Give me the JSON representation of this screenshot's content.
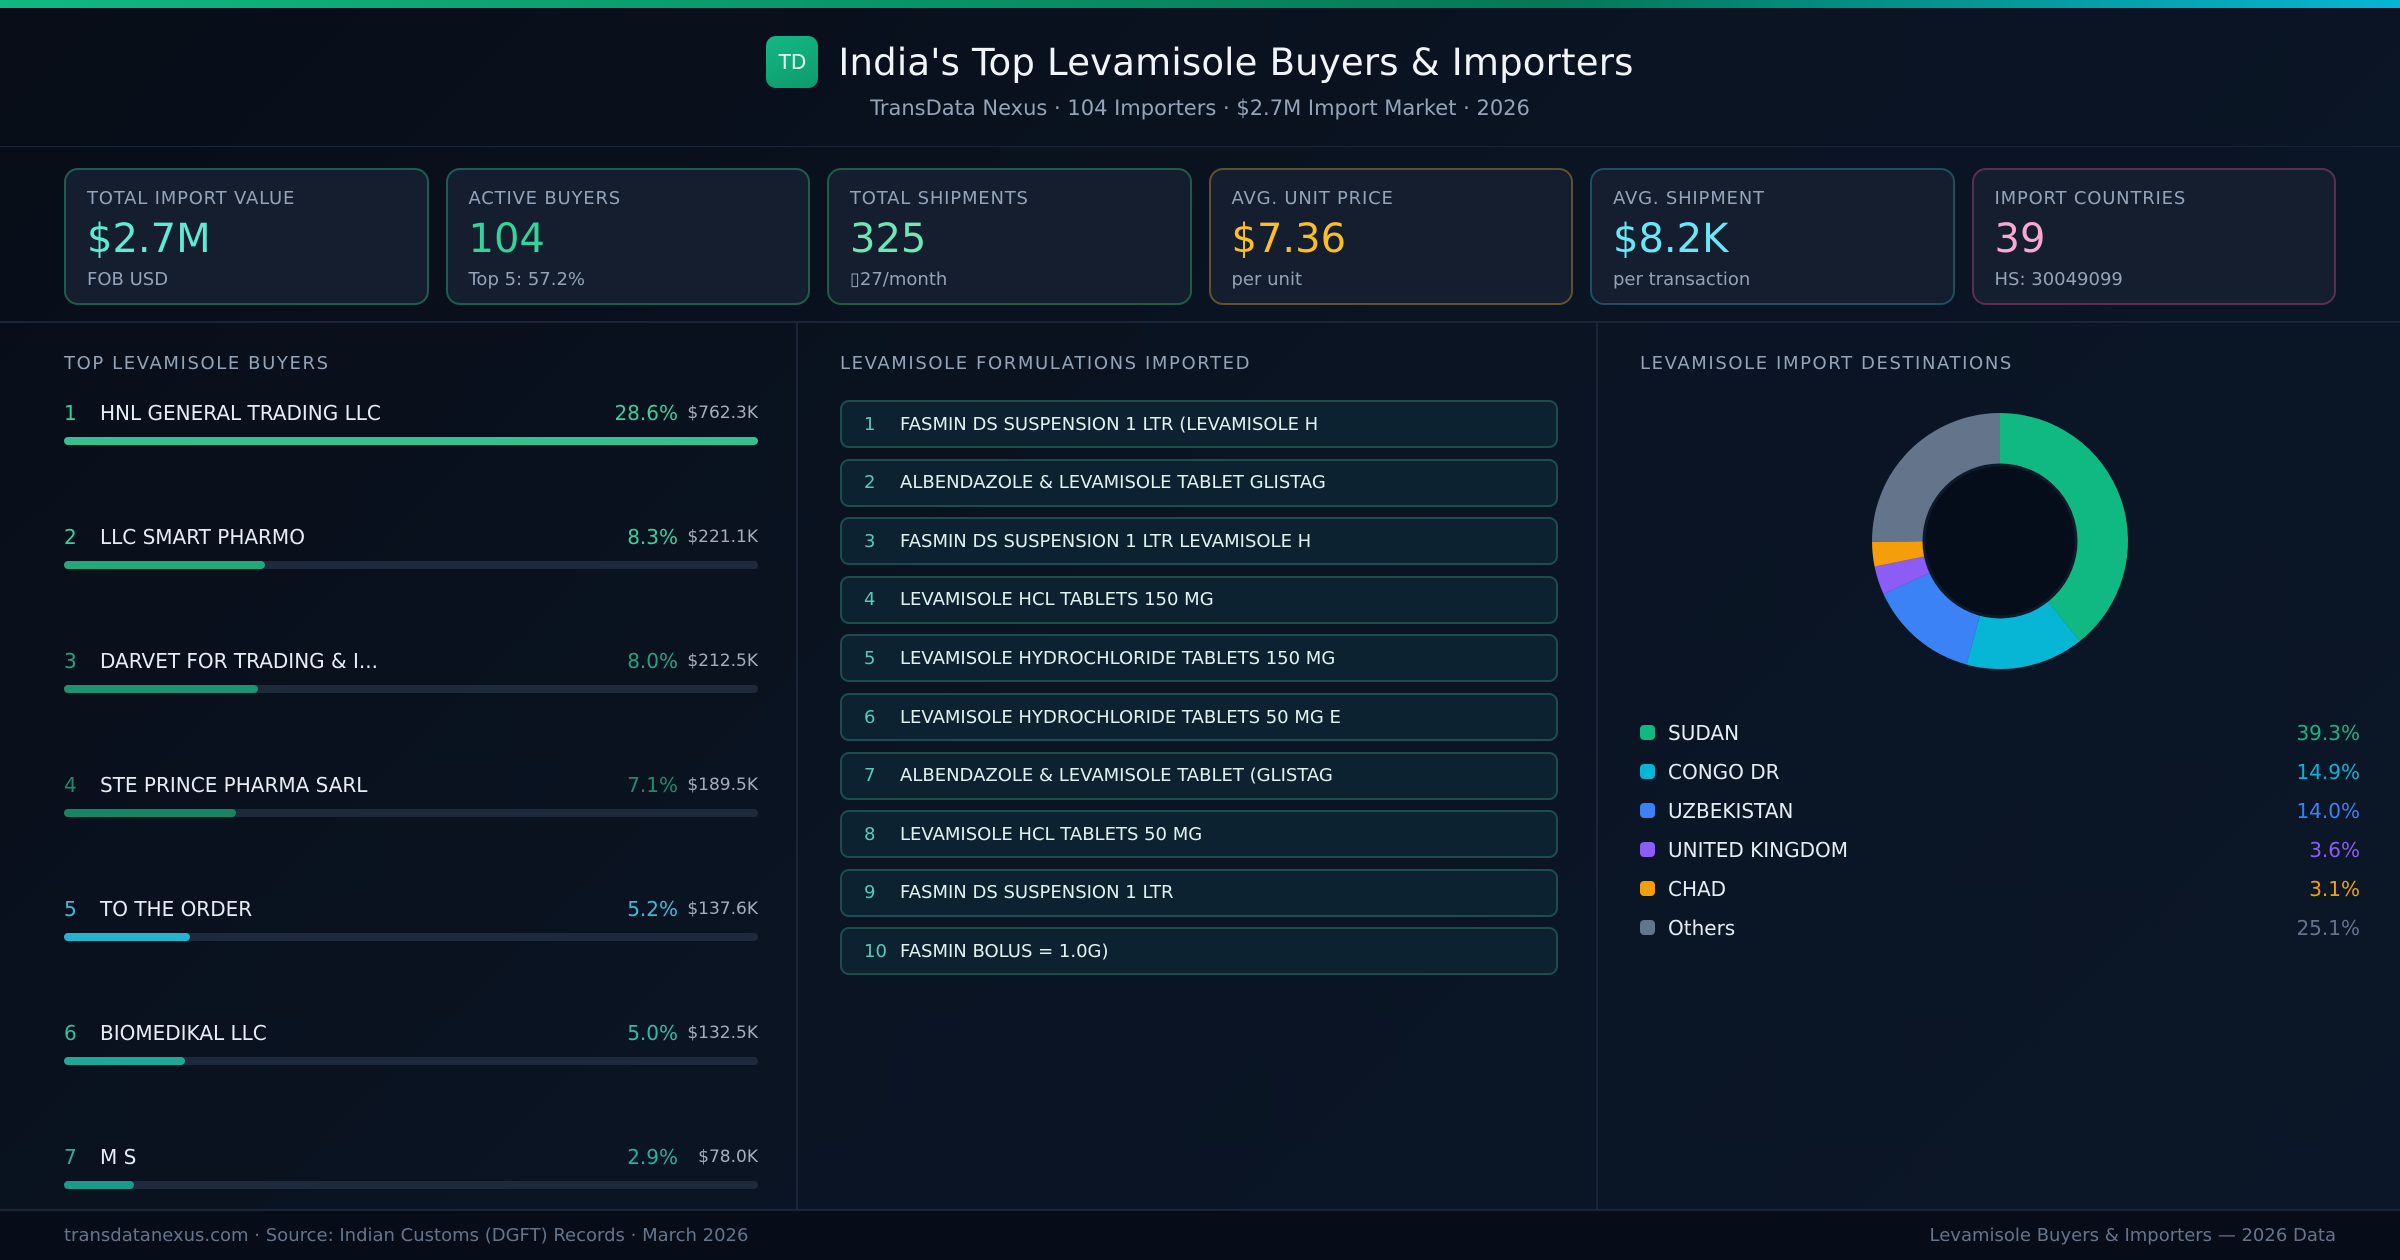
{
  "header": {
    "logo": "TD",
    "title": "India's Top Levamisole Buyers & Importers",
    "subtitle": "TransData Nexus · 104 Importers · $2.7M Import Market · 2026"
  },
  "kpis": [
    {
      "label": "TOTAL IMPORT VALUE",
      "value": "$2.7M",
      "sub": "FOB USD",
      "color": "#5eead4",
      "border": "#1f5c50"
    },
    {
      "label": "ACTIVE BUYERS",
      "value": "104",
      "sub": "Top 5: 57.2%",
      "color": "#34d399",
      "border": "#1f5c50"
    },
    {
      "label": "TOTAL SHIPMENTS",
      "value": "325",
      "sub": "▯27/month",
      "color": "#6ee7b7",
      "border": "#1f5c44"
    },
    {
      "label": "AVG. UNIT PRICE",
      "value": "$7.36",
      "sub": "per unit",
      "color": "#fbbf24",
      "border": "#5f5130"
    },
    {
      "label": "AVG. SHIPMENT",
      "value": "$8.2K",
      "sub": "per transaction",
      "color": "#67e8f9",
      "border": "#1d4f5e"
    },
    {
      "label": "IMPORT COUNTRIES",
      "value": "39",
      "sub": "HS: 30049099",
      "color": "#f9a8d4",
      "border": "#5a2f52"
    }
  ],
  "buyers": {
    "title": "TOP LEVAMISOLE BUYERS",
    "items": [
      {
        "rank": "1",
        "name": "HNL GENERAL TRADING LLC",
        "pct": "28.6%",
        "value": "$762.3K",
        "share": 28.6,
        "color": "#34d399",
        "bar": "#34c08f"
      },
      {
        "rank": "2",
        "name": "LLC SMART PHARMO",
        "pct": "8.3%",
        "value": "$221.1K",
        "share": 8.3,
        "color": "#34d399",
        "bar": "#22a97a"
      },
      {
        "rank": "3",
        "name": "DARVET FOR TRADING & I...",
        "pct": "8.0%",
        "value": "$212.5K",
        "share": 8.0,
        "color": "#22a57a",
        "bar": "#1b9470"
      },
      {
        "rank": "4",
        "name": "STE PRINCE PHARMA SARL",
        "pct": "7.1%",
        "value": "$189.5K",
        "share": 7.1,
        "color": "#1f8a6a",
        "bar": "#168562"
      },
      {
        "rank": "5",
        "name": "TO THE ORDER",
        "pct": "5.2%",
        "value": "$137.6K",
        "share": 5.2,
        "color": "#38bdd8",
        "bar": "#22b5d2"
      },
      {
        "rank": "6",
        "name": "BIOMEDIKAL LLC",
        "pct": "5.0%",
        "value": "$132.5K",
        "share": 5.0,
        "color": "#2dbfa6",
        "bar": "#1ea896"
      },
      {
        "rank": "7",
        "name": "M S",
        "pct": "2.9%",
        "value": "$78.0K",
        "share": 2.9,
        "color": "#2ab09a",
        "bar": "#1a9a88"
      }
    ]
  },
  "formulations": {
    "title": "LEVAMISOLE FORMULATIONS IMPORTED",
    "items": [
      {
        "num": "1",
        "name": "FASMIN DS SUSPENSION 1 LTR (LEVAMISOLE H"
      },
      {
        "num": "2",
        "name": "ALBENDAZOLE & LEVAMISOLE TABLET GLISTAG"
      },
      {
        "num": "3",
        "name": "FASMIN DS SUSPENSION 1 LTR LEVAMISOLE H"
      },
      {
        "num": "4",
        "name": "LEVAMISOLE HCL TABLETS 150 MG"
      },
      {
        "num": "5",
        "name": "LEVAMISOLE HYDROCHLORIDE TABLETS 150 MG"
      },
      {
        "num": "6",
        "name": "LEVAMISOLE HYDROCHLORIDE TABLETS 50 MG E"
      },
      {
        "num": "7",
        "name": "ALBENDAZOLE & LEVAMISOLE TABLET (GLISTAG"
      },
      {
        "num": "8",
        "name": "LEVAMISOLE HCL TABLETS 50 MG"
      },
      {
        "num": "9",
        "name": "FASMIN DS SUSPENSION 1 LTR"
      },
      {
        "num": "10",
        "name": "FASMIN BOLUS = 1.0G)"
      }
    ]
  },
  "destinations": {
    "title": "LEVAMISOLE IMPORT DESTINATIONS"
  },
  "chart_data": [
    {
      "type": "bar",
      "title": "TOP LEVAMISOLE BUYERS",
      "orientation": "horizontal",
      "categories": [
        "HNL GENERAL TRADING LLC",
        "LLC SMART PHARMO",
        "DARVET FOR TRADING & I...",
        "STE PRINCE PHARMA SARL",
        "TO THE ORDER",
        "BIOMEDIKAL LLC",
        "M S"
      ],
      "values": [
        28.6,
        8.3,
        8.0,
        7.1,
        5.2,
        5.0,
        2.9
      ],
      "value_labels": [
        "$762.3K",
        "$221.1K",
        "$212.5K",
        "$189.5K",
        "$137.6K",
        "$132.5K",
        "$78.0K"
      ],
      "unit": "% share"
    },
    {
      "type": "pie",
      "donut": true,
      "title": "LEVAMISOLE IMPORT DESTINATIONS",
      "categories": [
        "SUDAN",
        "CONGO DR",
        "UZBEKISTAN",
        "UNITED KINGDOM",
        "CHAD",
        "Others"
      ],
      "values": [
        39.3,
        14.9,
        14.0,
        3.6,
        3.1,
        25.1
      ],
      "labels": [
        "39.3%",
        "14.9%",
        "14.0%",
        "3.6%",
        "3.1%",
        "25.1%"
      ],
      "colors": [
        "#10b981",
        "#06b6d4",
        "#3b82f6",
        "#8b5cf6",
        "#f59e0b",
        "#64748b"
      ],
      "legend_position": "bottom"
    }
  ],
  "footer": {
    "left": "transdatanexus.com · Source: Indian Customs (DGFT) Records · March 2026",
    "right": "Levamisole Buyers & Importers — 2026 Data"
  }
}
